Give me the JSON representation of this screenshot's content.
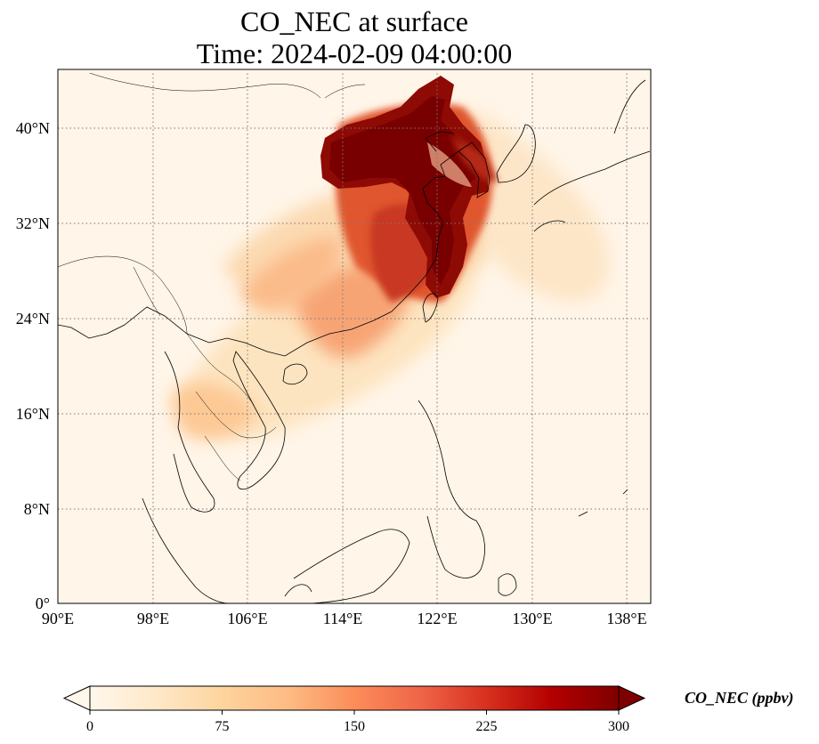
{
  "title": {
    "line1": "CO_NEC at surface",
    "line2": "Time: 2024-02-09 04:00:00"
  },
  "map": {
    "lat_ticks": [
      "40°N",
      "32°N",
      "24°N",
      "16°N",
      "8°N",
      "0°"
    ],
    "lon_ticks": [
      "90°E",
      "98°E",
      "106°E",
      "114°E",
      "122°E",
      "130°E",
      "138°E"
    ],
    "gridlines": true,
    "gridline_style": "dotted",
    "extent": {
      "lon_min": 90,
      "lon_max": 140,
      "lat_min": 0,
      "lat_max": 45
    }
  },
  "colorbar": {
    "label": "CO_NEC (ppbv)",
    "ticks": [
      "0",
      "75",
      "150",
      "225",
      "300"
    ],
    "min": 0,
    "max": 300,
    "colormap": "OrRd",
    "colors": [
      "#fff7ec",
      "#fee8c8",
      "#fdd49e",
      "#fdbb84",
      "#fc8d59",
      "#ef6548",
      "#d7301f",
      "#b30000",
      "#7f0000"
    ],
    "extend": "both"
  },
  "chart_data": {
    "type": "heatmap",
    "title": "CO_NEC at surface\nTime: 2024-02-09 04:00:00",
    "variable": "CO_NEC",
    "units": "ppbv",
    "vmin": 0,
    "vmax": 300
  }
}
